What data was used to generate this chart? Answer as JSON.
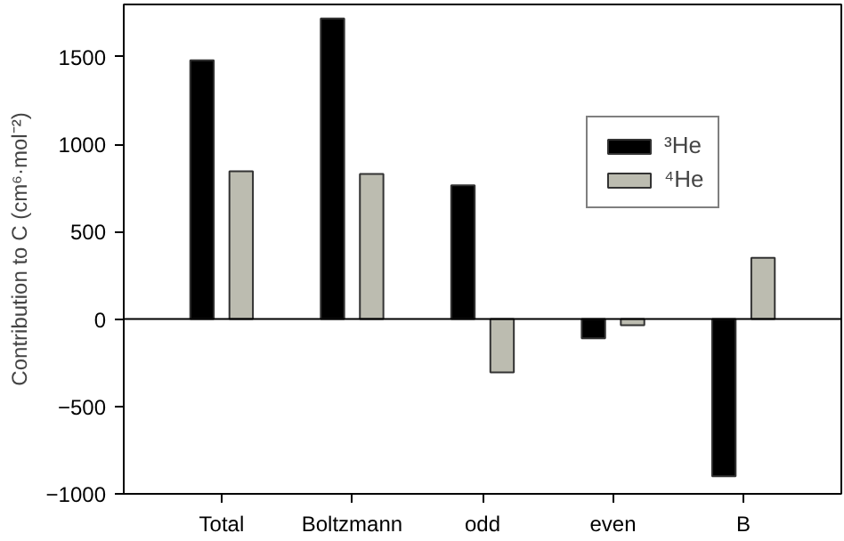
{
  "chart_data": {
    "type": "bar",
    "ylabel": "Contribution to C (cm⁶·mol⁻²)",
    "categories": [
      "Total",
      "Boltzmann",
      "odd",
      "even",
      "B"
    ],
    "series": [
      {
        "name": "³He",
        "color": "#000000",
        "values": [
          1480,
          1720,
          765,
          -110,
          -900
        ]
      },
      {
        "name": "⁴He",
        "color": "#bcbcb0",
        "values": [
          845,
          830,
          -305,
          -35,
          350
        ]
      }
    ],
    "ylim": [
      -1000,
      1800
    ],
    "yticks": [
      -1000,
      -500,
      0,
      500,
      1000,
      1500
    ],
    "ref_lines": [
      {
        "axis": "y",
        "value": 0,
        "color": "#000000"
      }
    ],
    "legend": "top right",
    "grid": false
  }
}
